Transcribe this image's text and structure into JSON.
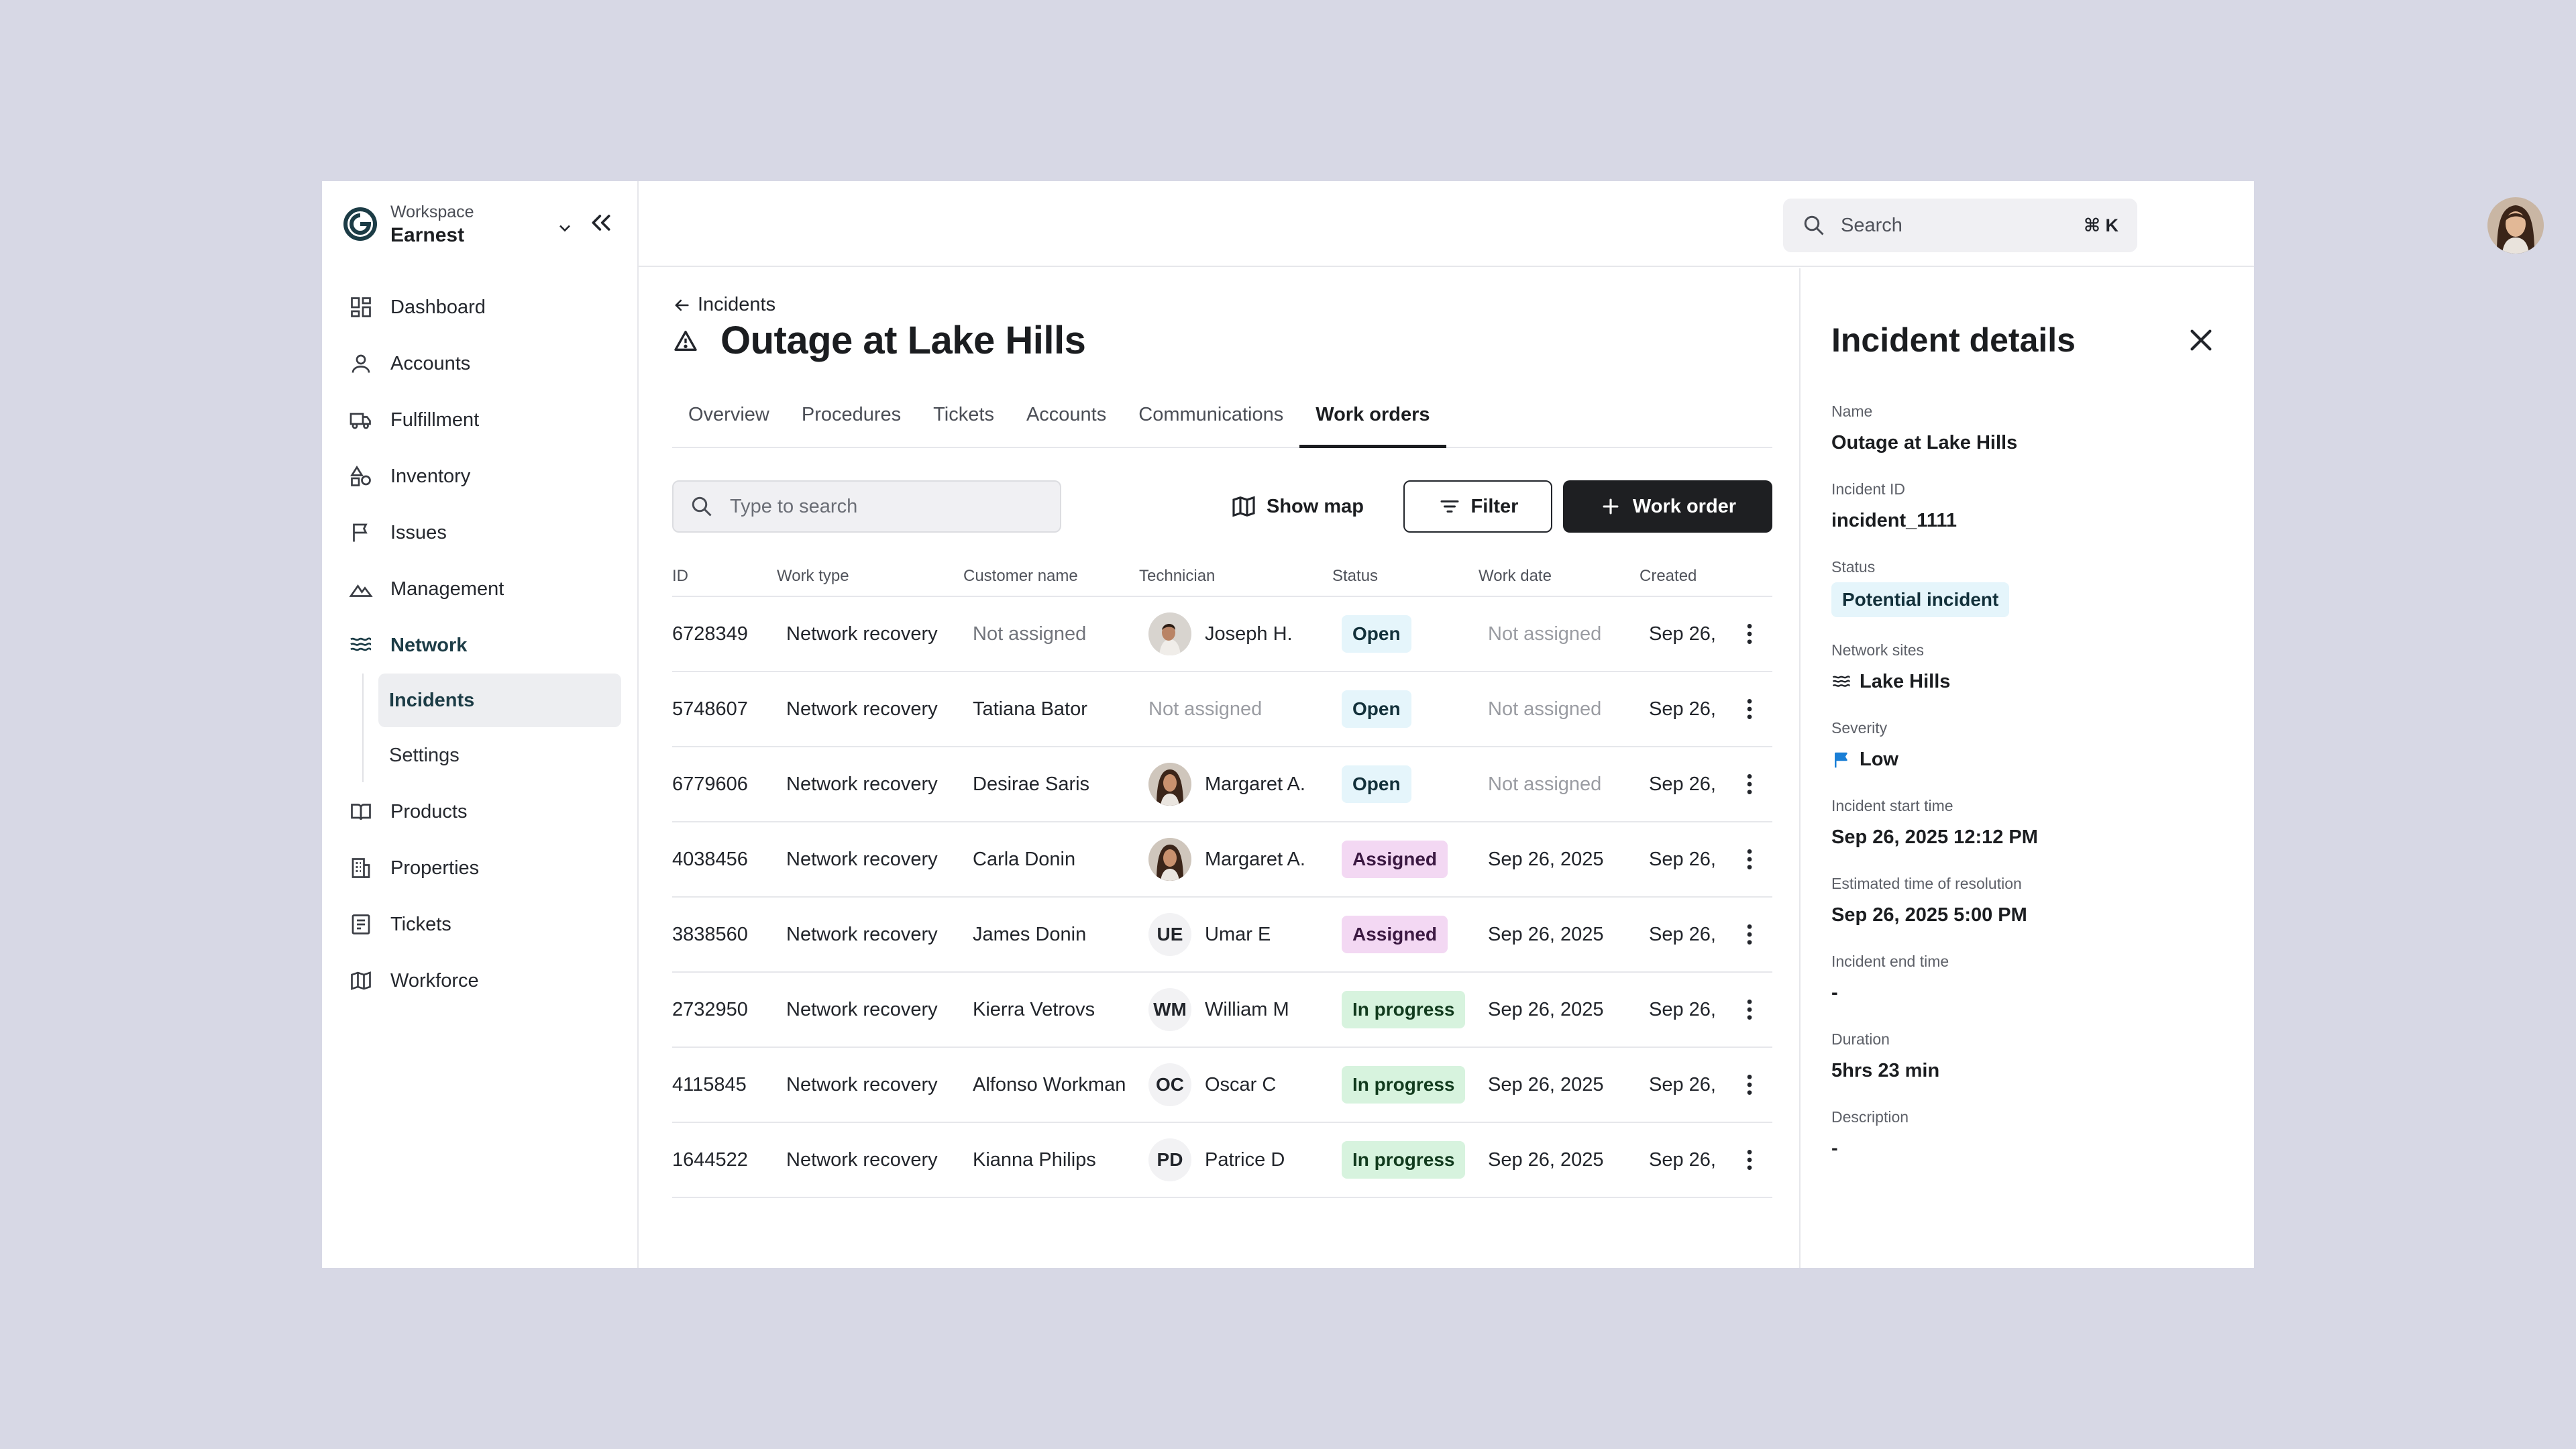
{
  "workspace": {
    "label": "Workspace",
    "name": "Earnest"
  },
  "sidebar": {
    "items": [
      {
        "label": "Dashboard",
        "icon": "dashboard-icon"
      },
      {
        "label": "Accounts",
        "icon": "user-icon"
      },
      {
        "label": "Fulfillment",
        "icon": "truck-icon"
      },
      {
        "label": "Inventory",
        "icon": "shapes-icon"
      },
      {
        "label": "Issues",
        "icon": "flag-icon"
      },
      {
        "label": "Management",
        "icon": "mountain-icon"
      },
      {
        "label": "Network",
        "icon": "waves-icon"
      }
    ],
    "subitems": [
      {
        "label": "Incidents"
      },
      {
        "label": "Settings"
      }
    ],
    "items_after": [
      {
        "label": "Products",
        "icon": "book-icon"
      },
      {
        "label": "Properties",
        "icon": "building-icon"
      },
      {
        "label": "Tickets",
        "icon": "ticket-icon"
      },
      {
        "label": "Workforce",
        "icon": "map-icon"
      }
    ]
  },
  "topbar": {
    "search_placeholder": "Search",
    "shortcut": "⌘ K"
  },
  "page": {
    "back_label": "Incidents",
    "title": "Outage at Lake Hills",
    "tabs": [
      "Overview",
      "Procedures",
      "Tickets",
      "Accounts",
      "Communications",
      "Work orders"
    ],
    "active_tab": "Work orders"
  },
  "toolbar": {
    "search_placeholder": "Type to search",
    "show_map": "Show map",
    "filter": "Filter",
    "add": "Work order"
  },
  "table": {
    "headers": [
      "ID",
      "Work type",
      "Customer name",
      "Technician",
      "Status",
      "Work date",
      "Created"
    ],
    "rows": [
      {
        "id": "6728349",
        "type": "Network recovery",
        "customer": "Not assigned",
        "tech_initials": "",
        "tech": "Joseph H.",
        "status": "Open",
        "date": "Not assigned",
        "created": "Sep 26,"
      },
      {
        "id": "5748607",
        "type": "Network recovery",
        "customer": "Tatiana Bator",
        "tech_initials": "",
        "tech": "Not assigned",
        "status": "Open",
        "date": "Not assigned",
        "created": "Sep 26,"
      },
      {
        "id": "6779606",
        "type": "Network recovery",
        "customer": "Desirae Saris",
        "tech_initials": "",
        "tech": "Margaret A.",
        "status": "Open",
        "date": "Not assigned",
        "created": "Sep 26,"
      },
      {
        "id": "4038456",
        "type": "Network recovery",
        "customer": "Carla Donin",
        "tech_initials": "",
        "tech": "Margaret A.",
        "status": "Assigned",
        "date": "Sep 26, 2025",
        "created": "Sep 26,"
      },
      {
        "id": "3838560",
        "type": "Network recovery",
        "customer": "James Donin",
        "tech_initials": "UE",
        "tech": "Umar E",
        "status": "Assigned",
        "date": "Sep 26, 2025",
        "created": "Sep 26,"
      },
      {
        "id": "2732950",
        "type": "Network recovery",
        "customer": "Kierra Vetrovs",
        "tech_initials": "WM",
        "tech": "William M",
        "status": "In progress",
        "date": "Sep 26, 2025",
        "created": "Sep 26,"
      },
      {
        "id": "4115845",
        "type": "Network recovery",
        "customer": "Alfonso Workman",
        "tech_initials": "OC",
        "tech": "Oscar C",
        "status": "In progress",
        "date": "Sep 26, 2025",
        "created": "Sep 26,"
      },
      {
        "id": "1644522",
        "type": "Network recovery",
        "customer": "Kianna Philips",
        "tech_initials": "PD",
        "tech": "Patrice D",
        "status": "In progress",
        "date": "Sep 26, 2025",
        "created": "Sep 26,"
      }
    ]
  },
  "details": {
    "title": "Incident details",
    "fields": {
      "name_label": "Name",
      "name": "Outage at Lake Hills",
      "id_label": "Incident ID",
      "id": "incident_1111",
      "status_label": "Status",
      "status": "Potential incident",
      "sites_label": "Network sites",
      "sites": "Lake Hills",
      "severity_label": "Severity",
      "severity": "Low",
      "start_label": "Incident start time",
      "start": "Sep 26, 2025 12:12 PM",
      "eta_label": "Estimated time of resolution",
      "eta": "Sep 26, 2025 5:00 PM",
      "end_label": "Incident end time",
      "end": "-",
      "duration_label": "Duration",
      "duration": "5hrs 23 min",
      "description_label": "Description",
      "description": "-"
    }
  },
  "colors": {
    "brand": "#1c3c46",
    "open_bg": "#e5f5fb",
    "assigned_bg": "#f3d8f3",
    "progress_bg": "#d7f3de",
    "primary_button": "#1e1f22",
    "severity_flag": "#1a7fd6"
  }
}
